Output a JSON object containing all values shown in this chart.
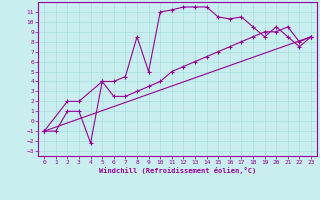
{
  "xlabel": "Windchill (Refroidissement éolien,°C)",
  "bg_color": "#c8eef0",
  "line_color": "#990099",
  "grid_color": "#aadddd",
  "xlim": [
    -0.5,
    23.5
  ],
  "ylim": [
    -3.5,
    12
  ],
  "xticks": [
    0,
    1,
    2,
    3,
    4,
    5,
    6,
    7,
    8,
    9,
    10,
    11,
    12,
    13,
    14,
    15,
    16,
    17,
    18,
    19,
    20,
    21,
    22,
    23
  ],
  "yticks": [
    -3,
    -2,
    -1,
    0,
    1,
    2,
    3,
    4,
    5,
    6,
    7,
    8,
    9,
    10,
    11
  ],
  "series": [
    {
      "x": [
        0,
        1,
        2,
        3,
        4,
        5,
        6,
        7,
        8,
        9,
        10,
        11,
        12,
        13,
        14,
        15,
        16,
        17,
        18,
        19,
        20,
        21,
        22,
        23
      ],
      "y": [
        -1,
        -1,
        1,
        1,
        -2.2,
        4,
        4,
        4.5,
        8.5,
        5,
        11,
        11.2,
        11.5,
        11.5,
        11.5,
        10.5,
        10.3,
        10.5,
        9.5,
        8.5,
        9.5,
        8.5,
        7.5,
        8.5
      ]
    },
    {
      "x": [
        0,
        2,
        3,
        5,
        6,
        7,
        8,
        9,
        10,
        11,
        12,
        13,
        14,
        15,
        16,
        17,
        18,
        19,
        20,
        21,
        22,
        23
      ],
      "y": [
        -1,
        2,
        2,
        4,
        2.5,
        2.5,
        3,
        3.5,
        4,
        5,
        5.5,
        6,
        6.5,
        7,
        7.5,
        8,
        8.5,
        9,
        9,
        9.5,
        8,
        8.5
      ]
    },
    {
      "x": [
        0,
        23
      ],
      "y": [
        -1,
        8.5
      ]
    }
  ]
}
